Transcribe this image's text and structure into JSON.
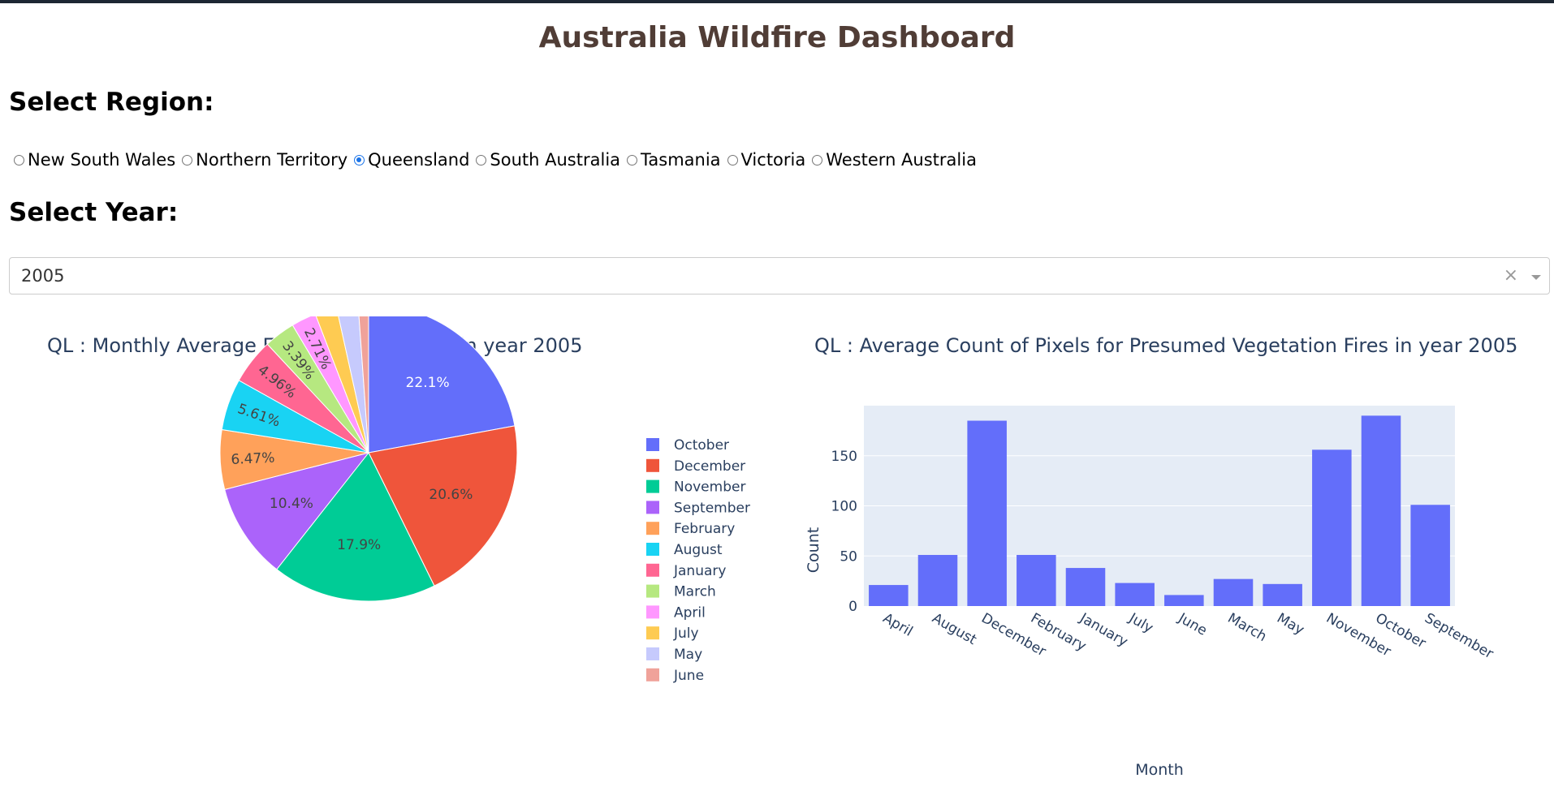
{
  "page": {
    "title": "Australia Wildfire Dashboard",
    "region_heading": "Select Region:",
    "year_heading": "Select Year:"
  },
  "regions": [
    {
      "label": "New South Wales",
      "checked": false
    },
    {
      "label": "Northern Territory",
      "checked": false
    },
    {
      "label": "Queensland",
      "checked": true
    },
    {
      "label": "South Australia",
      "checked": false
    },
    {
      "label": "Tasmania",
      "checked": false
    },
    {
      "label": "Victoria",
      "checked": false
    },
    {
      "label": "Western Australia",
      "checked": false
    }
  ],
  "year_select": {
    "value": "2005",
    "clear_icon": "×"
  },
  "colors": {
    "title": "#503d36",
    "chart_title": "#2a3f5f",
    "bar": "#636efa",
    "plot_bg": "#e5ecf6",
    "radio_selected": "#1a73e8"
  },
  "chart_data": [
    {
      "type": "pie",
      "title": "QL : Monthly Average Estimated Fire Area in year 2005",
      "legend_position": "right",
      "slices": [
        {
          "label": "October",
          "value": 22.1,
          "text": "22.1%",
          "color": "#636efa"
        },
        {
          "label": "December",
          "value": 20.6,
          "text": "20.6%",
          "color": "#ef553b"
        },
        {
          "label": "November",
          "value": 17.9,
          "text": "17.9%",
          "color": "#00cc96"
        },
        {
          "label": "September",
          "value": 10.4,
          "text": "10.4%",
          "color": "#ab63fa"
        },
        {
          "label": "February",
          "value": 6.47,
          "text": "6.47%",
          "color": "#ffa15a"
        },
        {
          "label": "August",
          "value": 5.61,
          "text": "5.61%",
          "color": "#19d3f3"
        },
        {
          "label": "January",
          "value": 4.96,
          "text": "4.96%",
          "color": "#ff6692"
        },
        {
          "label": "March",
          "value": 3.39,
          "text": "3.39%",
          "color": "#b6e880"
        },
        {
          "label": "April",
          "value": 2.71,
          "text": "2.71%",
          "color": "#ff97ff"
        },
        {
          "label": "July",
          "value": 2.38,
          "text": "2.38%",
          "color": "#fecb52"
        },
        {
          "label": "May",
          "value": 2.34,
          "text": "2.34%",
          "color": "#c6cafd"
        },
        {
          "label": "June",
          "value": 1.12,
          "text": "1.12%",
          "color": "#f0a29a"
        }
      ]
    },
    {
      "type": "bar",
      "title": "QL : Average Count of Pixels for Presumed Vegetation Fires in year 2005",
      "xlabel": "Month",
      "ylabel": "Count",
      "ylim": [
        0,
        200
      ],
      "yticks": [
        0,
        50,
        100,
        150
      ],
      "grid": true,
      "categories": [
        "April",
        "August",
        "December",
        "February",
        "January",
        "July",
        "June",
        "March",
        "May",
        "November",
        "October",
        "September"
      ],
      "values": [
        21,
        51,
        185,
        51,
        38,
        23,
        11,
        27,
        22,
        156,
        190,
        101
      ]
    }
  ]
}
